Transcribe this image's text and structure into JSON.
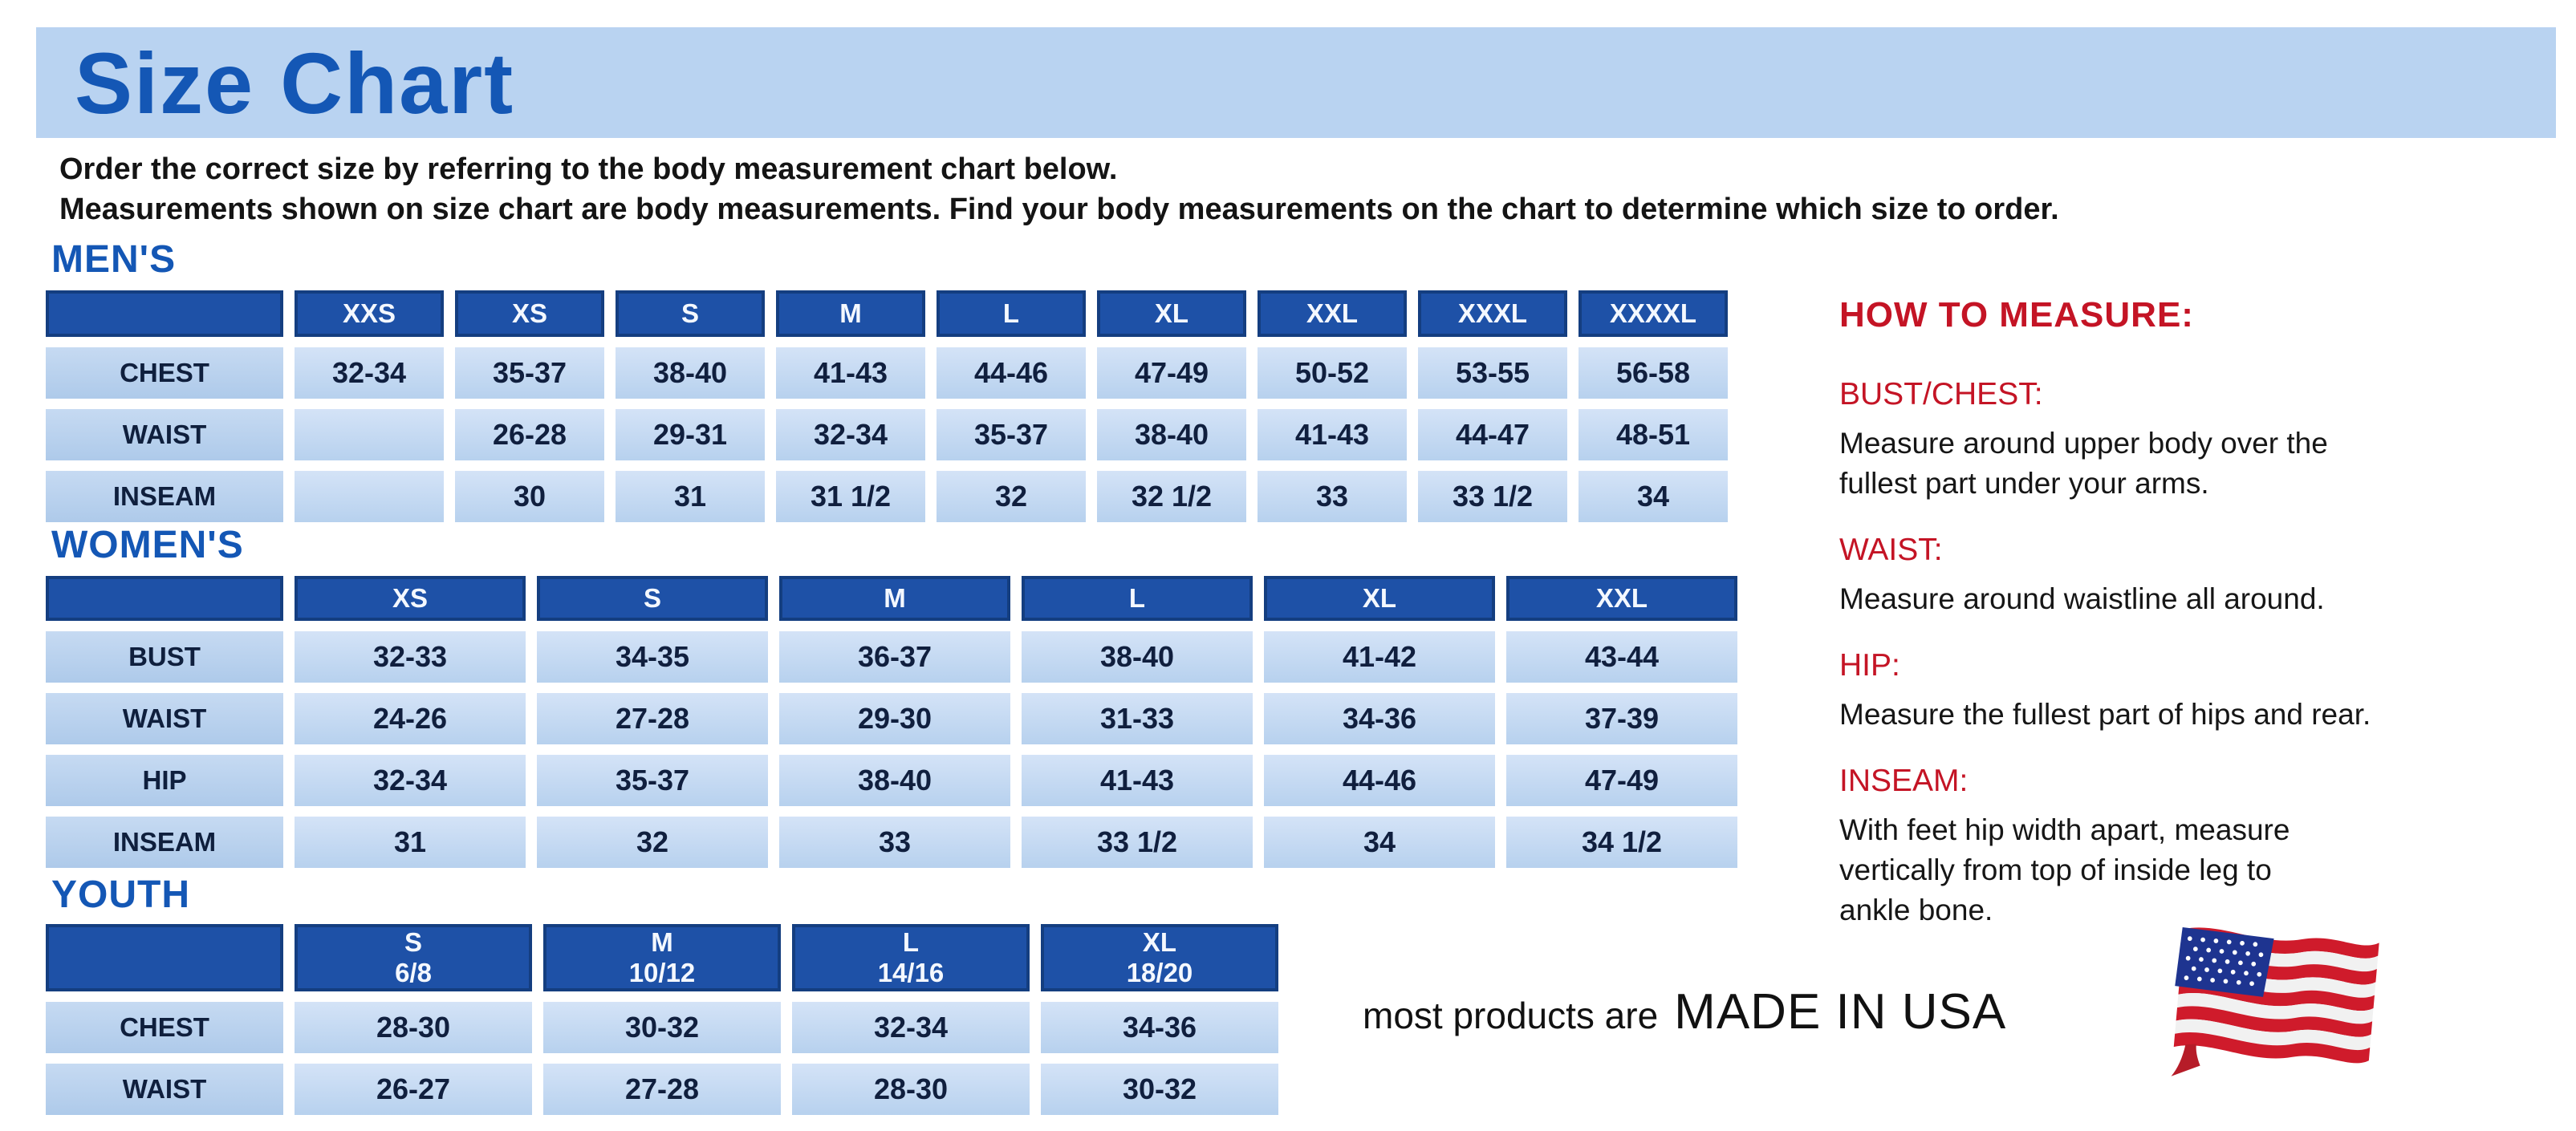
{
  "banner": {
    "title": "Size Chart"
  },
  "intro": {
    "line1": "Order the correct size by referring to the body measurement chart below.",
    "line2": "Measurements shown on size chart are body measurements.  Find your body measurements on the chart to determine which size to order."
  },
  "tables": {
    "mens": {
      "heading": "MEN'S",
      "columns": [
        "XXS",
        "XS",
        "S",
        "M",
        "L",
        "XL",
        "XXL",
        "XXXL",
        "XXXXL"
      ],
      "rows": [
        {
          "label": "CHEST",
          "values": [
            "32-34",
            "35-37",
            "38-40",
            "41-43",
            "44-46",
            "47-49",
            "50-52",
            "53-55",
            "56-58"
          ]
        },
        {
          "label": "WAIST",
          "values": [
            "",
            "26-28",
            "29-31",
            "32-34",
            "35-37",
            "38-40",
            "41-43",
            "44-47",
            "48-51"
          ]
        },
        {
          "label": "INSEAM",
          "values": [
            "",
            "30",
            "31",
            "31 1/2",
            "32",
            "32 1/2",
            "33",
            "33 1/2",
            "34"
          ]
        }
      ]
    },
    "womens": {
      "heading": "WOMEN'S",
      "columns": [
        "XS",
        "S",
        "M",
        "L",
        "XL",
        "XXL"
      ],
      "rows": [
        {
          "label": "BUST",
          "values": [
            "32-33",
            "34-35",
            "36-37",
            "38-40",
            "41-42",
            "43-44"
          ]
        },
        {
          "label": "WAIST",
          "values": [
            "24-26",
            "27-28",
            "29-30",
            "31-33",
            "34-36",
            "37-39"
          ]
        },
        {
          "label": "HIP",
          "values": [
            "32-34",
            "35-37",
            "38-40",
            "41-43",
            "44-46",
            "47-49"
          ]
        },
        {
          "label": "INSEAM",
          "values": [
            "31",
            "32",
            "33",
            "33 1/2",
            "34",
            "34 1/2"
          ]
        }
      ]
    },
    "youth": {
      "heading": "YOUTH",
      "columns": [
        "S\n6/8",
        "M\n10/12",
        "L\n14/16",
        "XL\n18/20"
      ],
      "rows": [
        {
          "label": "CHEST",
          "values": [
            "28-30",
            "30-32",
            "32-34",
            "34-36"
          ]
        },
        {
          "label": "WAIST",
          "values": [
            "26-27",
            "27-28",
            "28-30",
            "30-32"
          ]
        }
      ]
    }
  },
  "how_to_measure": {
    "heading": "HOW TO MEASURE:",
    "items": [
      {
        "term": "BUST/CHEST:",
        "desc": "Measure around upper body over the\nfullest part under your arms."
      },
      {
        "term": "WAIST:",
        "desc": "Measure around waistline all around."
      },
      {
        "term": "HIP:",
        "desc": "Measure the fullest part of hips and rear."
      },
      {
        "term": "INSEAM:",
        "desc": "With feet hip width apart, measure\nvertically from top of inside leg to\nankle bone."
      }
    ]
  },
  "footer": {
    "prefix": "most products are",
    "made_in": "MADE IN USA",
    "flag_icon": "us-flag"
  },
  "colors": {
    "banner_blue": "#b9d3f1",
    "title_blue": "#1457b5",
    "table_header_blue": "#1e51a7",
    "light_cell_blue": "#c4d9f2",
    "accent_red": "#c41425",
    "flag_red": "#cf1b2b",
    "flag_canton_blue": "#1e3490"
  }
}
